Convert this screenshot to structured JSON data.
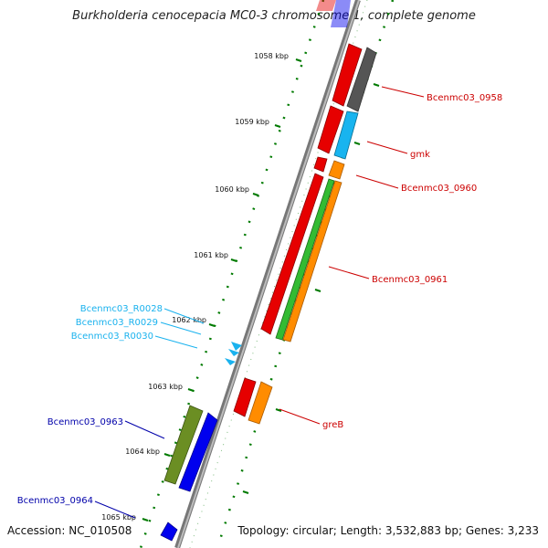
{
  "title": "Burkholderia cenocepacia MC0-3 chromosome 1, complete genome",
  "footer": {
    "accession": "Accession: NC_010508",
    "topology": "Topology: circular; Length: 3,532,883 bp; Genes: 3,233"
  },
  "colors": {
    "red": "#e60000",
    "gray": "#666666",
    "cyan": "#1ab2ee",
    "orange": "#ff8c00",
    "green": "#33bb33",
    "olive": "#6b8e23",
    "blue": "#0000ee",
    "label_red": "#cc0000",
    "label_cyan": "#1ab2ee",
    "label_blue": "#0000aa",
    "tick_green": "#007a00"
  },
  "ticks": [
    {
      "label": "1058 kbp"
    },
    {
      "label": "1059 kbp"
    },
    {
      "label": "1060 kbp"
    },
    {
      "label": "1061 kbp"
    },
    {
      "label": "1062 kbp"
    },
    {
      "label": "1063 kbp"
    },
    {
      "label": "1064 kbp"
    },
    {
      "label": "1065 kbp"
    }
  ],
  "gene_labels": [
    {
      "text": "Bcenmc03_0958",
      "color": "label_red"
    },
    {
      "text": "gmk",
      "color": "label_red"
    },
    {
      "text": "Bcenmc03_0960",
      "color": "label_red"
    },
    {
      "text": "Bcenmc03_0961",
      "color": "label_red"
    },
    {
      "text": "greB",
      "color": "label_red"
    },
    {
      "text": "Bcenmc03_R0028",
      "color": "label_cyan"
    },
    {
      "text": "Bcenmc03_R0029",
      "color": "label_cyan"
    },
    {
      "text": "Bcenmc03_R0030",
      "color": "label_cyan"
    },
    {
      "text": "Bcenmc03_0963",
      "color": "label_blue"
    },
    {
      "text": "Bcenmc03_0964",
      "color": "label_blue"
    }
  ]
}
